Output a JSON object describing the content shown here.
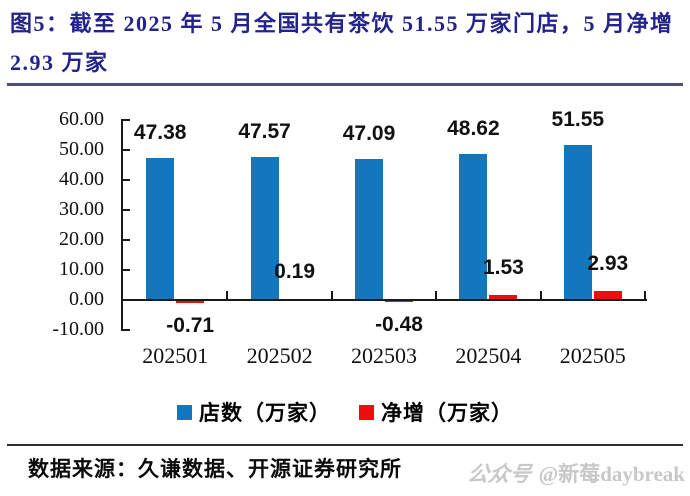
{
  "header": {
    "title": "图5：截至 2025 年 5 月全国共有茶饮 51.55 万家门店，5 月净增 2.93 万家"
  },
  "chart_data": {
    "type": "bar",
    "title": "截至 2025 年 5 月全国共有茶饮 51.55 万家门店，5 月净增 2.93 万家",
    "categories": [
      "202501",
      "202502",
      "202503",
      "202504",
      "202505"
    ],
    "series": [
      {
        "name": "店数（万家）",
        "color": "#1377BE",
        "values": [
          47.38,
          47.57,
          47.09,
          48.62,
          51.55
        ]
      },
      {
        "name": "净增（万家）",
        "color": "#EE0D0D",
        "values": [
          -0.71,
          0.19,
          -0.48,
          1.53,
          2.93
        ]
      }
    ],
    "ylim": [
      -10,
      60
    ],
    "y_ticks": [
      "60.00",
      "50.00",
      "40.00",
      "30.00",
      "20.00",
      "10.00",
      "0.00",
      "-10.00"
    ],
    "grid": false,
    "legend_position": "bottom",
    "value_label_color": "#111111",
    "axis_color": "#1a1a1a"
  },
  "footer": {
    "source": "数据来源：久谦数据、开源证券研究所",
    "watermark_logo": "公众号",
    "watermark_handle": "@新莓daybreak"
  }
}
